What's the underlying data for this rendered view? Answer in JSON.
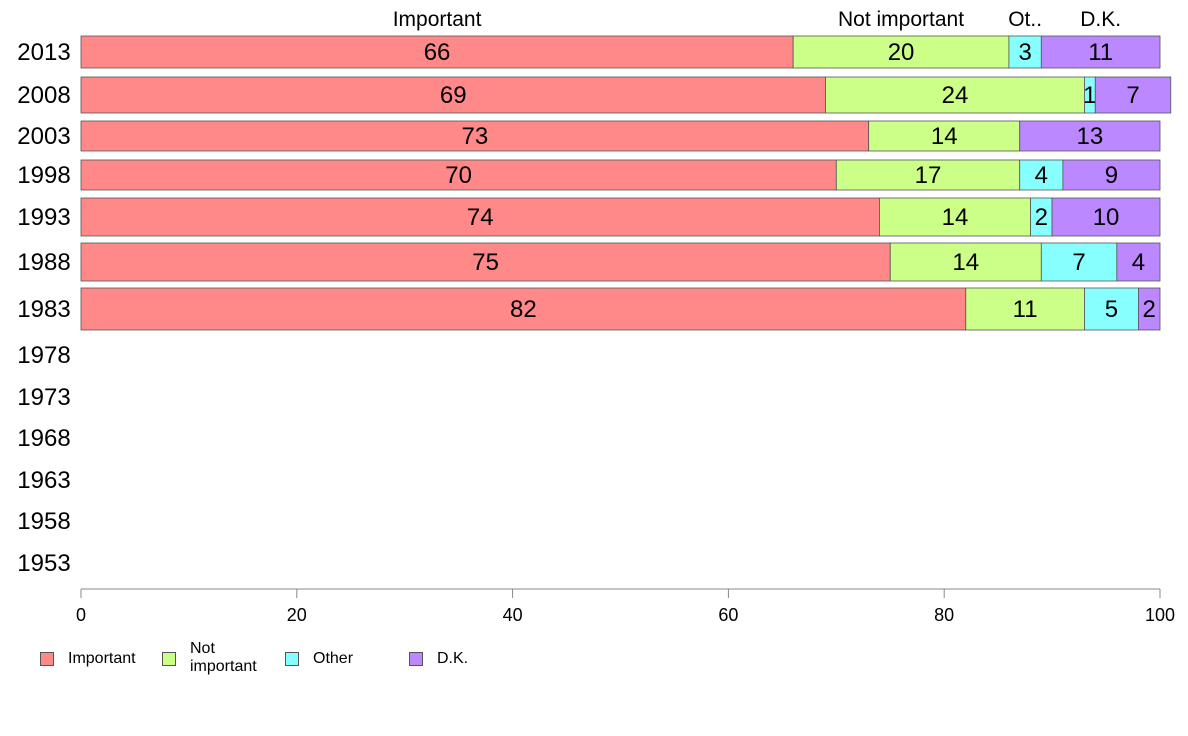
{
  "chart_data": {
    "type": "bar",
    "orientation": "horizontal",
    "stacked": true,
    "categories": [
      "2013",
      "2008",
      "2003",
      "1998",
      "1993",
      "1988",
      "1983",
      "1978",
      "1973",
      "1968",
      "1963",
      "1958",
      "1953"
    ],
    "series": [
      {
        "name": "Important",
        "color": "#ff8888",
        "values": [
          66,
          69,
          73,
          70,
          74,
          75,
          82,
          null,
          null,
          null,
          null,
          null,
          null
        ]
      },
      {
        "name": "Not important",
        "color": "#ccff88",
        "values": [
          20,
          24,
          14,
          17,
          14,
          14,
          11,
          null,
          null,
          null,
          null,
          null,
          null
        ]
      },
      {
        "name": "Other",
        "color": "#88ffff",
        "values": [
          3,
          1,
          0,
          4,
          2,
          7,
          5,
          null,
          null,
          null,
          null,
          null,
          null
        ]
      },
      {
        "name": "D.K.",
        "color": "#bb88ff",
        "values": [
          11,
          7,
          13,
          9,
          10,
          4,
          2,
          null,
          null,
          null,
          null,
          null,
          null
        ]
      }
    ],
    "top_labels": [
      "Important",
      "Not important",
      "Ot..",
      "D.K."
    ],
    "xlim": [
      0,
      100
    ],
    "xticks": [
      "0",
      "20",
      "40",
      "60",
      "80",
      "100"
    ],
    "grid": false,
    "legend_position": "bottom-left"
  },
  "legend": [
    {
      "label": "Important",
      "color": "#ff8888"
    },
    {
      "label": "Not\nimportant",
      "color": "#ccff88"
    },
    {
      "label": "Other",
      "color": "#88ffff"
    },
    {
      "label": "D.K.",
      "color": "#bb88ff"
    }
  ]
}
